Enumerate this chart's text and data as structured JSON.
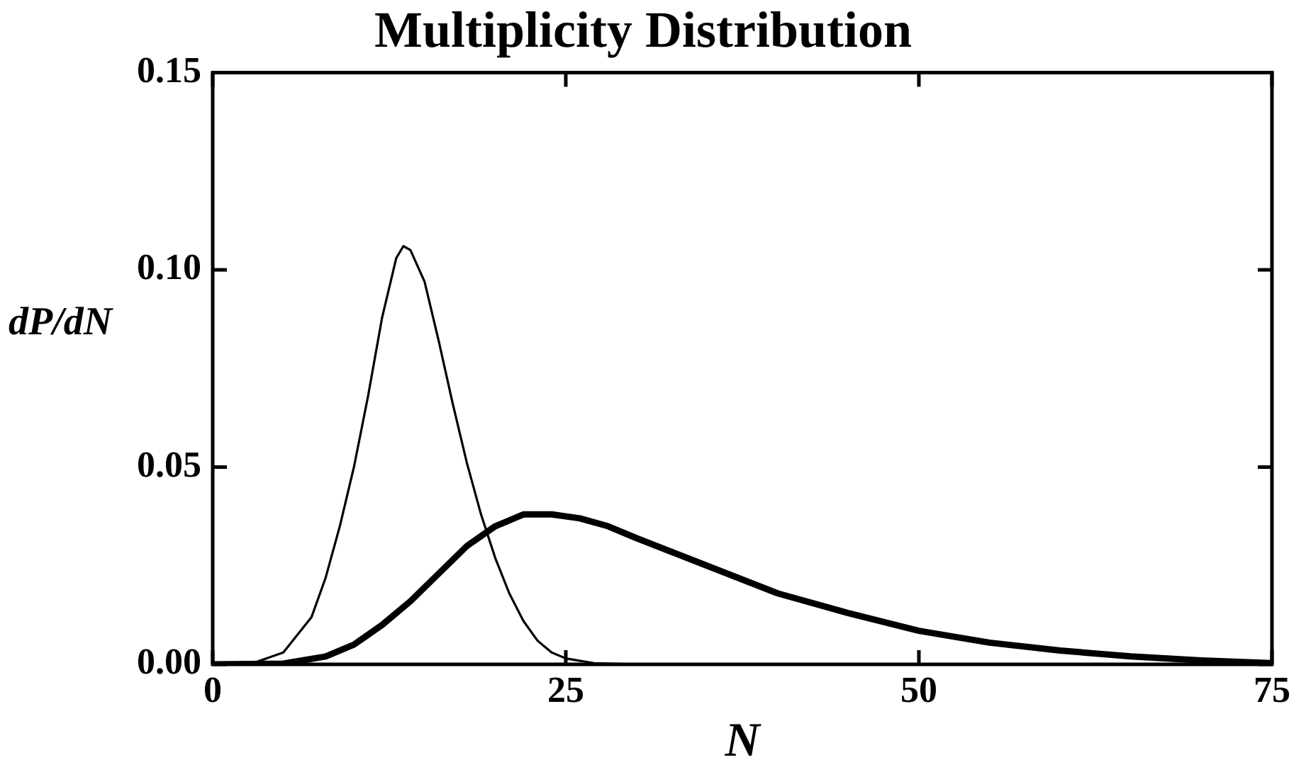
{
  "chart_data": {
    "type": "line",
    "title": "Multiplicity Distribution",
    "xlabel": "N",
    "ylabel": "dP/dN",
    "xlim": [
      0,
      75
    ],
    "xticks": [
      0,
      25,
      50,
      75
    ],
    "ylim": [
      0,
      0.15
    ],
    "yticks": [
      {
        "value": 0,
        "label": "0.00"
      },
      {
        "value": 0.05,
        "label": "0.05"
      },
      {
        "value": 0.1,
        "label": "0.10"
      },
      {
        "value": 0.15,
        "label": "0.15"
      }
    ],
    "grid": false,
    "legend": false,
    "marker": "none",
    "line_style": "solid",
    "series": [
      {
        "color": "#000000",
        "x": [
          0,
          3,
          5,
          7,
          8,
          9,
          10,
          11,
          12,
          13,
          13.5,
          14,
          15,
          16,
          17,
          18,
          19,
          20,
          21,
          22,
          23,
          24,
          25,
          27,
          30
        ],
        "values": [
          0,
          0.0005,
          0.003,
          0.012,
          0.022,
          0.035,
          0.05,
          0.068,
          0.088,
          0.103,
          0.106,
          0.105,
          0.097,
          0.082,
          0.066,
          0.051,
          0.038,
          0.027,
          0.018,
          0.011,
          0.006,
          0.003,
          0.0015,
          0.0003,
          0
        ]
      },
      {
        "color": "#000000",
        "x": [
          0,
          5,
          8,
          10,
          12,
          14,
          16,
          18,
          20,
          22,
          24,
          26,
          28,
          30,
          35,
          40,
          45,
          50,
          55,
          60,
          65,
          70,
          75
        ],
        "values": [
          0,
          0.0002,
          0.002,
          0.005,
          0.01,
          0.016,
          0.023,
          0.03,
          0.035,
          0.038,
          0.038,
          0.037,
          0.035,
          0.032,
          0.025,
          0.018,
          0.013,
          0.0085,
          0.0055,
          0.0035,
          0.002,
          0.001,
          0.0003
        ]
      }
    ]
  }
}
